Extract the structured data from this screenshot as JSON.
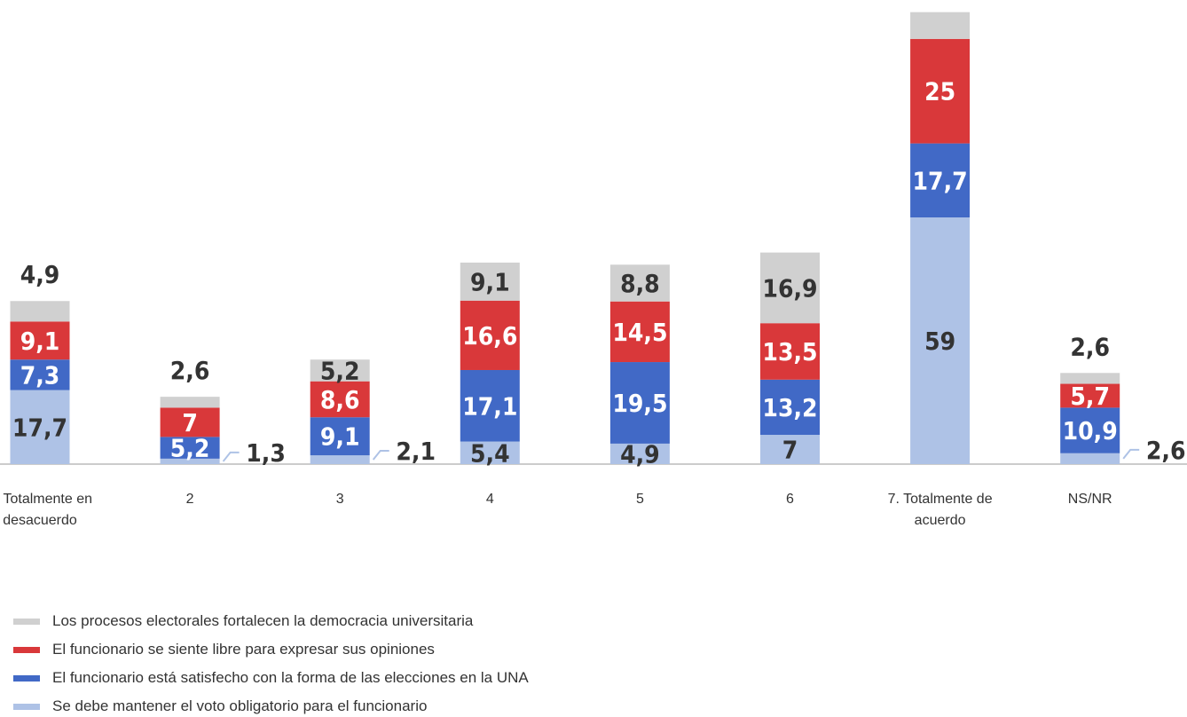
{
  "chart_data": {
    "type": "stacked_bar",
    "categories": [
      "1. Totalmente en desacuerdo",
      "2",
      "3",
      "4",
      "5",
      "6",
      "7. Totalmente de acuerdo",
      "NS/NR"
    ],
    "ylim": [
      0,
      111
    ],
    "series": [
      {
        "name": "Los procesos electorales fortalecen la democracia universitaria",
        "color": "#d0d0d0",
        "values": [
          4.9,
          2.6,
          5.2,
          9.1,
          8.8,
          16.9,
          6.4,
          2.6
        ],
        "value_labels": [
          "4,9",
          "2,6",
          "5,2",
          "9,1",
          "8,8",
          "16,9",
          null,
          "2,6"
        ]
      },
      {
        "name": "El funcionario se siente libre para expresar sus opiniones",
        "color": "#d9383a",
        "values": [
          9.1,
          7,
          8.6,
          16.6,
          14.5,
          13.5,
          25,
          5.7
        ],
        "value_labels": [
          "9,1",
          "7",
          "8,6",
          "16,6",
          "14,5",
          "13,5",
          "25",
          "5,7"
        ]
      },
      {
        "name": "El funcionario está satisfecho con la forma de las elecciones en la UNA",
        "color": "#4169c6",
        "values": [
          7.3,
          5.2,
          9.1,
          17.1,
          19.5,
          13.2,
          17.7,
          10.9
        ],
        "value_labels": [
          "7,3",
          "5,2",
          "9,1",
          "17,1",
          "19,5",
          "13,2",
          "17,7",
          "10,9"
        ]
      },
      {
        "name": "Se debe mantener el voto obligatorio para el funcionario",
        "color": "#aec2e6",
        "values": [
          17.7,
          1.3,
          2.1,
          5.4,
          4.9,
          7,
          59,
          2.6
        ],
        "value_labels": [
          "17,7",
          "1,3",
          "2,1",
          "5,4",
          "4,9",
          "7",
          "59",
          "2,6"
        ]
      }
    ]
  }
}
